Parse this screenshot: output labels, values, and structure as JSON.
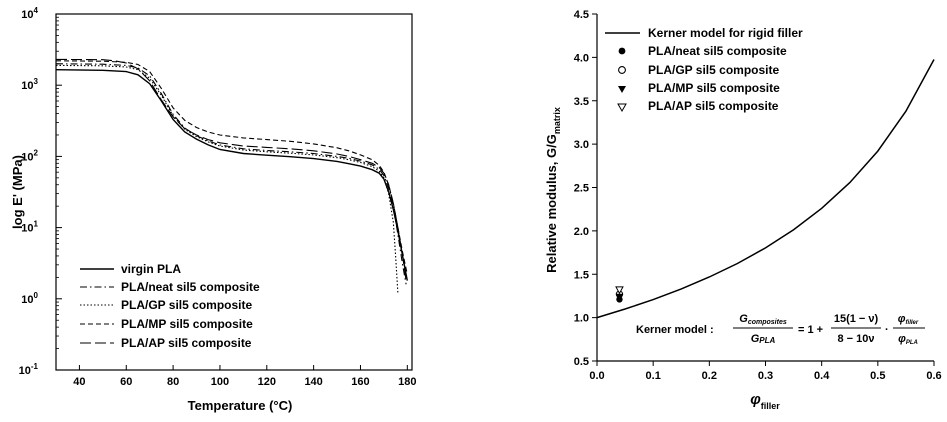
{
  "chart_data": [
    {
      "type": "line",
      "xlabel": "Temperature",
      "xlabel_unit": "(°C)",
      "ylabel": "log E' (MPa)",
      "xlim": [
        30,
        182
      ],
      "ylog": true,
      "ylim": [
        0.1,
        10000
      ],
      "x_ticks": [
        "40",
        "60",
        "80",
        "100",
        "120",
        "140",
        "160",
        "180"
      ],
      "y_ticks": [
        {
          "base": "10",
          "exp": "-1"
        },
        {
          "base": "10",
          "exp": "0"
        },
        {
          "base": "10",
          "exp": "1"
        },
        {
          "base": "10",
          "exp": "2"
        },
        {
          "base": "10",
          "exp": "3"
        },
        {
          "base": "10",
          "exp": "4"
        }
      ],
      "legend_position": "bottom-left",
      "grid": false,
      "series": [
        {
          "name": "virgin PLA",
          "dash": "solid",
          "points": [
            [
              30,
              1650
            ],
            [
              50,
              1620
            ],
            [
              60,
              1550
            ],
            [
              65,
              1400
            ],
            [
              70,
              1050
            ],
            [
              75,
              600
            ],
            [
              80,
              330
            ],
            [
              85,
              220
            ],
            [
              90,
              175
            ],
            [
              95,
              145
            ],
            [
              100,
              125
            ],
            [
              110,
              110
            ],
            [
              120,
              104
            ],
            [
              130,
              99
            ],
            [
              140,
              93
            ],
            [
              150,
              85
            ],
            [
              155,
              79
            ],
            [
              160,
              73
            ],
            [
              165,
              65
            ],
            [
              168,
              58
            ],
            [
              170,
              48
            ],
            [
              172,
              32
            ],
            [
              174,
              18
            ],
            [
              176,
              9
            ],
            [
              178,
              4
            ],
            [
              180,
              1.8
            ]
          ]
        },
        {
          "name": "PLA/neat sil5 composite",
          "dash": "dashdot",
          "points": [
            [
              30,
              2000
            ],
            [
              50,
              1970
            ],
            [
              60,
              1900
            ],
            [
              65,
              1750
            ],
            [
              70,
              1350
            ],
            [
              75,
              760
            ],
            [
              80,
              390
            ],
            [
              85,
              250
            ],
            [
              90,
              195
            ],
            [
              95,
              165
            ],
            [
              100,
              145
            ],
            [
              110,
              128
            ],
            [
              120,
              121
            ],
            [
              130,
              116
            ],
            [
              140,
              110
            ],
            [
              150,
              100
            ],
            [
              155,
              94
            ],
            [
              160,
              86
            ],
            [
              165,
              76
            ],
            [
              168,
              66
            ],
            [
              170,
              54
            ],
            [
              172,
              36
            ],
            [
              174,
              20
            ],
            [
              176,
              8
            ],
            [
              178,
              3
            ],
            [
              179.5,
              1.6
            ]
          ]
        },
        {
          "name": "PLA/GP sil5 composite",
          "dash": "dotted",
          "points": [
            [
              30,
              1900
            ],
            [
              50,
              1870
            ],
            [
              60,
              1800
            ],
            [
              65,
              1650
            ],
            [
              70,
              1250
            ],
            [
              75,
              720
            ],
            [
              80,
              370
            ],
            [
              85,
              240
            ],
            [
              90,
              190
            ],
            [
              95,
              160
            ],
            [
              100,
              140
            ],
            [
              110,
              123
            ],
            [
              120,
              116
            ],
            [
              130,
              111
            ],
            [
              140,
              105
            ],
            [
              150,
              96
            ],
            [
              155,
              90
            ],
            [
              160,
              82
            ],
            [
              165,
              72
            ],
            [
              168,
              62
            ],
            [
              170,
              50
            ],
            [
              172,
              30
            ],
            [
              174,
              12
            ],
            [
              175,
              4
            ],
            [
              176,
              1.2
            ]
          ]
        },
        {
          "name": "PLA/MP sil5 composite",
          "dash": "shortdash",
          "points": [
            [
              30,
              2200
            ],
            [
              50,
              2170
            ],
            [
              60,
              2100
            ],
            [
              65,
              1950
            ],
            [
              70,
              1550
            ],
            [
              75,
              900
            ],
            [
              80,
              480
            ],
            [
              85,
              320
            ],
            [
              90,
              255
            ],
            [
              95,
              220
            ],
            [
              100,
              200
            ],
            [
              110,
              182
            ],
            [
              120,
              172
            ],
            [
              130,
              163
            ],
            [
              140,
              150
            ],
            [
              150,
              132
            ],
            [
              155,
              120
            ],
            [
              160,
              105
            ],
            [
              165,
              90
            ],
            [
              168,
              75
            ],
            [
              170,
              60
            ],
            [
              172,
              40
            ],
            [
              174,
              22
            ],
            [
              176,
              10
            ],
            [
              178,
              4.5
            ],
            [
              180,
              2.2
            ]
          ]
        },
        {
          "name": "PLA/AP sil5 composite",
          "dash": "longdash",
          "points": [
            [
              30,
              2300
            ],
            [
              50,
              2280
            ],
            [
              55,
              2200
            ],
            [
              60,
              2050
            ],
            [
              65,
              1700
            ],
            [
              70,
              1150
            ],
            [
              75,
              620
            ],
            [
              80,
              360
            ],
            [
              85,
              245
            ],
            [
              90,
              200
            ],
            [
              95,
              172
            ],
            [
              100,
              155
            ],
            [
              110,
              140
            ],
            [
              120,
              134
            ],
            [
              130,
              128
            ],
            [
              140,
              120
            ],
            [
              150,
              108
            ],
            [
              155,
              100
            ],
            [
              160,
              90
            ],
            [
              165,
              80
            ],
            [
              168,
              70
            ],
            [
              170,
              58
            ],
            [
              172,
              40
            ],
            [
              174,
              22
            ],
            [
              176,
              10
            ],
            [
              178,
              4
            ],
            [
              179.5,
              1.8
            ]
          ]
        }
      ]
    },
    {
      "type": "line",
      "xlabel": "φ",
      "xlabel_sub": "filler",
      "ylabel": "Relative modulus, G/G",
      "ylabel_sub": "matrix",
      "xlim": [
        0.0,
        0.6
      ],
      "ylim": [
        0.5,
        4.5
      ],
      "x_ticks": [
        "0.0",
        "0.1",
        "0.2",
        "0.3",
        "0.4",
        "0.5",
        "0.6"
      ],
      "y_ticks": [
        "0.5",
        "1.0",
        "1.5",
        "2.0",
        "2.5",
        "3.0",
        "3.5",
        "4.0",
        "4.5"
      ],
      "legend_position": "top-left",
      "grid": false,
      "series": [
        {
          "name": "Kerner model for rigid filler",
          "style": "line",
          "x": [
            0.0,
            0.05,
            0.1,
            0.15,
            0.2,
            0.25,
            0.3,
            0.35,
            0.4,
            0.45,
            0.5,
            0.55,
            0.6
          ],
          "y": [
            1.0,
            1.099,
            1.208,
            1.331,
            1.468,
            1.624,
            1.804,
            2.013,
            2.26,
            2.556,
            2.92,
            3.38,
            3.975
          ]
        },
        {
          "name": "PLA/neat sil5 composite",
          "style": "marker",
          "marker": "filled-circle",
          "x": [
            0.04
          ],
          "y": [
            1.21
          ]
        },
        {
          "name": "PLA/GP sil5 composite",
          "style": "marker",
          "marker": "open-circle",
          "x": [
            0.04
          ],
          "y": [
            1.27
          ]
        },
        {
          "name": "PLA/MP sil5 composite",
          "style": "marker",
          "marker": "filled-triangle-down",
          "x": [
            0.04
          ],
          "y": [
            1.24
          ]
        },
        {
          "name": "PLA/AP sil5 composite",
          "style": "marker",
          "marker": "open-triangle-down",
          "x": [
            0.04
          ],
          "y": [
            1.32
          ]
        }
      ],
      "annotation": {
        "prefix": "Kerner model :",
        "lhs_num": "G",
        "lhs_num_sub": "composites",
        "lhs_den": "G",
        "lhs_den_sub": "PLA",
        "eq": "= 1 +",
        "frac_num": "15(1 − ν)",
        "frac_den": "8 − 10ν",
        "dot": "·",
        "phi_num": "φ",
        "phi_num_sub": "filler",
        "phi_den": "φ",
        "phi_den_sub": "PLA"
      }
    }
  ]
}
